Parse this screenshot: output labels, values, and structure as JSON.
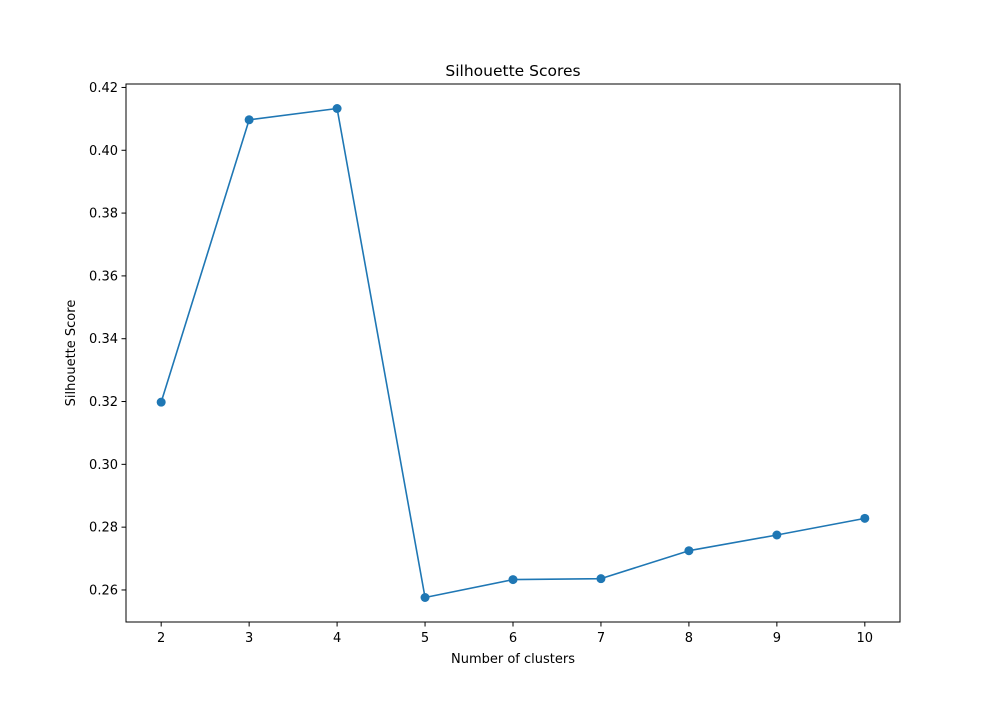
{
  "chart_data": {
    "type": "line",
    "title": "Silhouette Scores",
    "xlabel": "Number of clusters",
    "ylabel": "Silhouette Score",
    "x": [
      2,
      3,
      4,
      5,
      6,
      7,
      8,
      9,
      10
    ],
    "series": [
      {
        "values": [
          0.3198,
          0.4097,
          0.4133,
          0.2576,
          0.2633,
          0.2636,
          0.2725,
          0.2775,
          0.2828
        ],
        "marker": "circle",
        "color": "#1f77b4"
      }
    ],
    "xticks": [
      "2",
      "3",
      "4",
      "5",
      "6",
      "7",
      "8",
      "9",
      "10"
    ],
    "yticks": [
      "0.26",
      "0.28",
      "0.30",
      "0.32",
      "0.34",
      "0.36",
      "0.38",
      "0.40",
      "0.42"
    ],
    "xlim": [
      1.6,
      10.4
    ],
    "ylim": [
      0.2498,
      0.4211
    ],
    "grid": false,
    "legend": false
  }
}
